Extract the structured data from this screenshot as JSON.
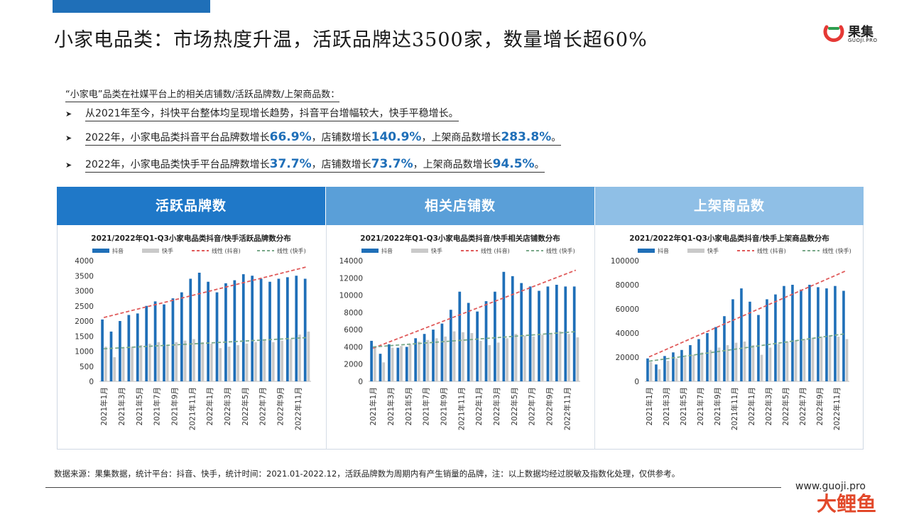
{
  "header": {
    "title": "小家电品类：市场热度升温，活跃品牌达3500家，数量增长超60%",
    "logo_text": "果集",
    "logo_sub": "GUOJI.PRO"
  },
  "intro": "“小家电”品类在社媒平台上的相关店铺数/活跃品牌数/上架商品数：",
  "bullets": [
    {
      "parts": [
        {
          "t": "从2021年至今，抖快平台整体均呈现增长趋势，抖音平台增幅较大，快手平稳增长。",
          "hl": false
        }
      ]
    },
    {
      "parts": [
        {
          "t": "2022年，小家电品类抖音平台品牌数增长",
          "hl": false
        },
        {
          "t": "66.9%",
          "hl": true
        },
        {
          "t": "，店铺数增长",
          "hl": false
        },
        {
          "t": "140.9%",
          "hl": true
        },
        {
          "t": "，上架商品数增长",
          "hl": false
        },
        {
          "t": "283.8%",
          "hl": true
        },
        {
          "t": "。",
          "hl": false
        }
      ]
    },
    {
      "parts": [
        {
          "t": "2022年，小家电品类快手平台品牌数增长",
          "hl": false
        },
        {
          "t": "37.7%",
          "hl": true
        },
        {
          "t": "，店铺数增长",
          "hl": false
        },
        {
          "t": "73.7%",
          "hl": true
        },
        {
          "t": "，上架商品数增长",
          "hl": false
        },
        {
          "t": "94.5%",
          "hl": true
        },
        {
          "t": "。",
          "hl": false
        }
      ]
    }
  ],
  "colors": {
    "douyin": "#1f6fb8",
    "kuaishou": "#c9c9c9",
    "trend_douyin": "#e05a5a",
    "trend_kuaishou": "#7aa98a"
  },
  "chart_data": [
    {
      "panel": "活跃品牌数",
      "type": "bar",
      "title": "2021/2022年Q1-Q3小家电品类抖音/快手活跃品牌数分布",
      "legend": [
        "抖音",
        "快手",
        "线性 (抖音)",
        "线性 (快手)"
      ],
      "categories": [
        "2021年1月",
        "2021年2月",
        "2021年3月",
        "2021年4月",
        "2021年5月",
        "2021年6月",
        "2021年7月",
        "2021年8月",
        "2021年9月",
        "2021年10月",
        "2021年11月",
        "2021年12月",
        "2022年1月",
        "2022年2月",
        "2022年3月",
        "2022年4月",
        "2022年5月",
        "2022年6月",
        "2022年7月",
        "2022年8月",
        "2022年9月",
        "2022年10月",
        "2022年11月",
        "2022年12月"
      ],
      "tick_labels": [
        "2021年1月",
        "2021年3月",
        "2021年5月",
        "2021年7月",
        "2021年9月",
        "2021年11月",
        "2022年1月",
        "2022年3月",
        "2022年5月",
        "2022年7月",
        "2022年9月",
        "2022年11月"
      ],
      "ylim": [
        0,
        4000
      ],
      "yticks": [
        0,
        500,
        1000,
        1500,
        2000,
        2500,
        3000,
        3500,
        4000
      ],
      "series": [
        {
          "name": "抖音",
          "values": [
            2050,
            1650,
            2000,
            2200,
            2250,
            2500,
            2650,
            2550,
            2750,
            2950,
            3400,
            3600,
            3300,
            2950,
            3250,
            3350,
            3550,
            3500,
            3400,
            3300,
            3400,
            3450,
            3500,
            3400
          ]
        },
        {
          "name": "快手",
          "values": [
            1150,
            800,
            1100,
            1150,
            1200,
            1250,
            1300,
            1200,
            1300,
            1350,
            1400,
            1300,
            1250,
            1100,
            1150,
            1200,
            1250,
            1300,
            1350,
            1300,
            1350,
            1400,
            1550,
            1650
          ]
        }
      ]
    },
    {
      "panel": "相关店铺数",
      "type": "bar",
      "title": "2021/2022年Q1-Q3小家电品类抖音/快手相关店铺数分布",
      "legend": [
        "抖音",
        "快手",
        "线性 (抖音)",
        "线性 (快手)"
      ],
      "categories": [
        "2021年1月",
        "2021年2月",
        "2021年3月",
        "2021年4月",
        "2021年5月",
        "2021年6月",
        "2021年7月",
        "2021年8月",
        "2021年9月",
        "2021年10月",
        "2021年11月",
        "2021年12月",
        "2022年1月",
        "2022年2月",
        "2022年3月",
        "2022年4月",
        "2022年5月",
        "2022年6月",
        "2022年7月",
        "2022年8月",
        "2022年9月",
        "2022年10月",
        "2022年11月",
        "2022年12月"
      ],
      "tick_labels": [
        "2021年1月",
        "2021年3月",
        "2021年5月",
        "2021年7月",
        "2021年9月",
        "2021年11月",
        "2022年1月",
        "2022年3月",
        "2022年5月",
        "2022年7月",
        "2022年9月",
        "2022年11月"
      ],
      "ylim": [
        0,
        14000
      ],
      "yticks": [
        0,
        2000,
        4000,
        6000,
        8000,
        10000,
        12000,
        14000
      ],
      "series": [
        {
          "name": "抖音",
          "values": [
            4700,
            3200,
            4300,
            3900,
            4000,
            5000,
            5500,
            6000,
            6700,
            8300,
            10400,
            9100,
            8100,
            9300,
            10400,
            12700,
            12200,
            11400,
            11000,
            10500,
            11000,
            11200,
            11000,
            11000
          ]
        },
        {
          "name": "快手",
          "values": [
            4000,
            2200,
            3900,
            4100,
            4300,
            4600,
            4800,
            5000,
            5200,
            5800,
            5700,
            5600,
            4700,
            4200,
            4500,
            5000,
            5500,
            5300,
            5200,
            5400,
            5600,
            5800,
            5500,
            5100
          ]
        }
      ]
    },
    {
      "panel": "上架商品数",
      "type": "bar",
      "title": "2021/2022年Q1-Q3小家电品类抖音/快手上架商品数分布",
      "legend": [
        "抖音",
        "快手",
        "线性 (抖音)",
        "线性 (快手)"
      ],
      "categories": [
        "2021年1月",
        "2021年2月",
        "2021年3月",
        "2021年4月",
        "2021年5月",
        "2021年6月",
        "2021年7月",
        "2021年8月",
        "2021年9月",
        "2021年10月",
        "2021年11月",
        "2021年12月",
        "2022年1月",
        "2022年2月",
        "2022年3月",
        "2022年4月",
        "2022年5月",
        "2022年6月",
        "2022年7月",
        "2022年8月",
        "2022年9月",
        "2022年10月",
        "2022年11月",
        "2022年12月"
      ],
      "tick_labels": [
        "2021年1月",
        "2021年3月",
        "2021年5月",
        "2021年7月",
        "2021年9月",
        "2021年11月",
        "2022年1月",
        "2022年3月",
        "2022年5月",
        "2022年7月",
        "2022年9月",
        "2022年11月"
      ],
      "ylim": [
        0,
        100000
      ],
      "yticks": [
        0,
        20000,
        40000,
        60000,
        80000,
        100000
      ],
      "series": [
        {
          "name": "抖音",
          "values": [
            19000,
            14000,
            21000,
            24000,
            26000,
            30000,
            35000,
            40000,
            45000,
            54000,
            68000,
            77000,
            66000,
            55000,
            68000,
            72000,
            79000,
            80000,
            76000,
            80000,
            78000,
            77000,
            79000,
            75000
          ]
        },
        {
          "name": "快手",
          "values": [
            16000,
            10000,
            17000,
            19000,
            20000,
            22000,
            24000,
            26000,
            28000,
            30000,
            32000,
            33000,
            30000,
            22000,
            28000,
            31000,
            33000,
            34000,
            35000,
            36000,
            37000,
            38000,
            37000,
            35000
          ]
        }
      ]
    }
  ],
  "footnote": "数据来源：果集数据，统计平台：抖音、快手，统计时间：2021.01-2022.12，活跃品牌数为周期内有产生销量的品牌，注：以上数据均经过脱敏及指数化处理，仅供参考。",
  "watermark": {
    "url": "www.guoji.pro",
    "big": "大鲤鱼"
  }
}
